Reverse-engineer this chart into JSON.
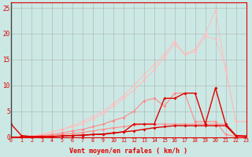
{
  "xlabel": "Vent moyen/en rafales ( km/h )",
  "bg_color": "#cce8e4",
  "grid_color": "#999999",
  "x_values": [
    0,
    1,
    2,
    3,
    4,
    5,
    6,
    7,
    8,
    9,
    10,
    11,
    12,
    13,
    14,
    15,
    16,
    17,
    18,
    19,
    20,
    21,
    22,
    23
  ],
  "line_light1": [
    0.0,
    0.0,
    0.2,
    0.5,
    1.0,
    1.5,
    2.2,
    3.0,
    4.0,
    5.0,
    6.5,
    8.0,
    10.0,
    12.0,
    14.0,
    16.0,
    18.5,
    16.0,
    17.0,
    20.0,
    24.5,
    13.0,
    3.0,
    3.0
  ],
  "line_light2": [
    0.0,
    0.0,
    0.2,
    0.5,
    1.0,
    1.5,
    2.0,
    2.5,
    3.5,
    4.5,
    6.0,
    7.5,
    9.0,
    11.0,
    13.0,
    15.5,
    18.0,
    16.0,
    16.5,
    19.5,
    19.0,
    13.5,
    3.0,
    3.0
  ],
  "line_mid1": [
    0.0,
    0.0,
    0.1,
    0.3,
    0.5,
    0.8,
    1.2,
    1.5,
    2.0,
    2.5,
    3.2,
    3.8,
    5.0,
    7.0,
    7.5,
    6.0,
    8.5,
    8.5,
    3.0,
    3.0,
    3.0,
    0.5,
    0.1,
    0.0
  ],
  "line_mid2": [
    0.0,
    0.0,
    0.1,
    0.2,
    0.3,
    0.5,
    0.7,
    0.9,
    1.2,
    1.5,
    1.8,
    2.0,
    2.3,
    2.5,
    2.5,
    2.5,
    2.5,
    2.5,
    2.5,
    2.5,
    2.5,
    2.5,
    0.3,
    0.3
  ],
  "line_dark1": [
    2.5,
    0.3,
    0.1,
    0.1,
    0.1,
    0.2,
    0.3,
    0.3,
    0.5,
    0.5,
    0.8,
    1.0,
    2.5,
    2.5,
    2.5,
    7.5,
    7.5,
    8.5,
    8.5,
    2.5,
    9.5,
    2.5,
    0.3,
    0.1
  ],
  "line_dark2": [
    0.0,
    0.0,
    0.0,
    0.1,
    0.1,
    0.2,
    0.3,
    0.4,
    0.5,
    0.6,
    0.8,
    1.0,
    1.2,
    1.5,
    1.8,
    2.0,
    2.2,
    2.2,
    2.2,
    2.2,
    2.2,
    2.2,
    0.2,
    0.2
  ],
  "color_light": "#ffbbbb",
  "color_mid": "#ff8888",
  "color_dark": "#dd0000",
  "lw_light": 0.7,
  "lw_mid": 0.8,
  "lw_dark": 1.0,
  "marker_size": 2.0,
  "ylim": [
    0,
    26
  ],
  "yticks": [
    0,
    5,
    10,
    15,
    20,
    25
  ],
  "xlim": [
    0,
    23
  ]
}
